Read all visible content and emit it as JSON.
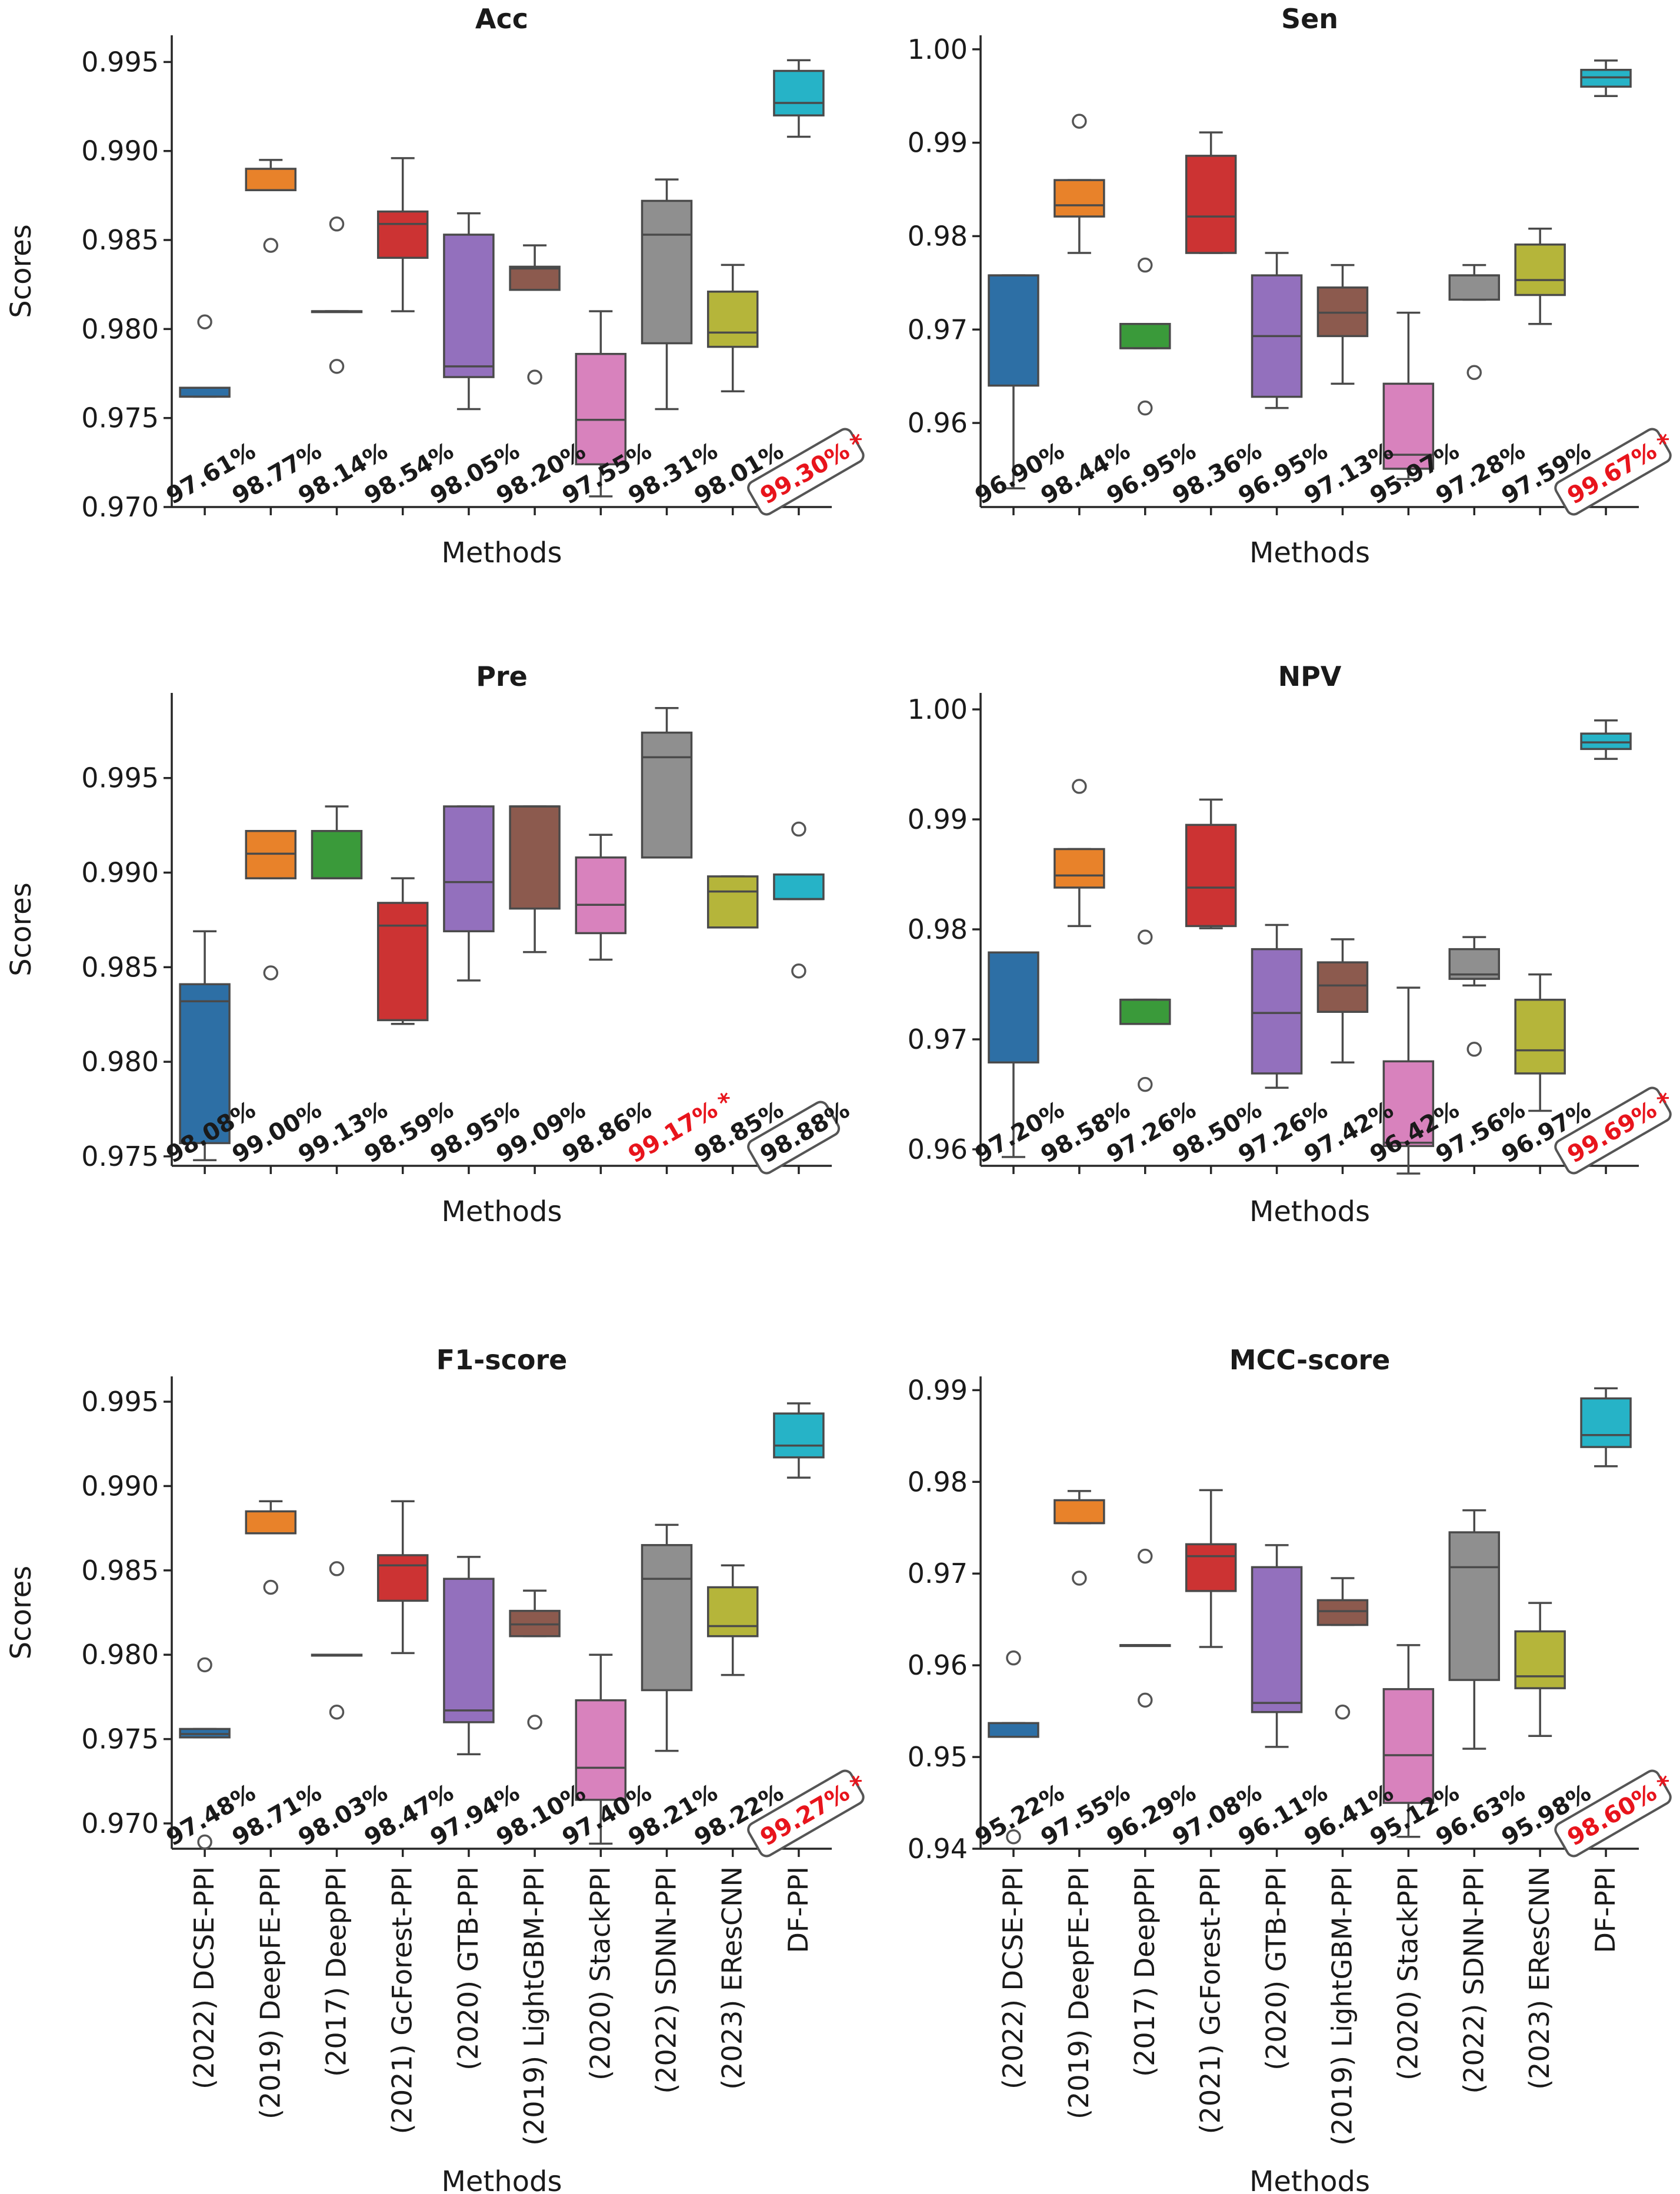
{
  "methods": [
    "(2022) DCSE-PPI",
    "(2019) DeepFE-PPI",
    "(2017) DeepPPI",
    "(2021) GcForest-PPI",
    "(2020) GTB-PPI",
    "(2019) LightGBM-PPI",
    "(2020) StackPPI",
    "(2022) SDNN-PPI",
    "(2023) EResCNN",
    "DF-PPI"
  ],
  "colors": [
    "#2d6fa5",
    "#e8822a",
    "#3a9a3a",
    "#cc3333",
    "#9370bd",
    "#8c5a4e",
    "#d882bd",
    "#8f8f8f",
    "#b5b53a",
    "#26b3c7"
  ],
  "axis_labels": {
    "x": "Methods",
    "y": "Scores"
  },
  "chart_data": [
    {
      "type": "box",
      "title": "Acc",
      "xlabel": "Methods",
      "ylabel": "Scores",
      "ylim": [
        0.97,
        0.9965
      ],
      "yticks": [
        0.97,
        0.975,
        0.98,
        0.985,
        0.99,
        0.995
      ],
      "ytick_labels": [
        "0.970",
        "0.975",
        "0.980",
        "0.985",
        "0.990",
        "0.995"
      ],
      "boxes": [
        {
          "whislo": 0.9762,
          "q1": 0.9762,
          "med": 0.9762,
          "q3": 0.9767,
          "whishi": 0.9767,
          "fliers": [
            0.9804
          ]
        },
        {
          "whislo": 0.9878,
          "q1": 0.9878,
          "med": 0.9878,
          "q3": 0.989,
          "whishi": 0.9895,
          "fliers": [
            0.9847
          ]
        },
        {
          "whislo": 0.981,
          "q1": 0.981,
          "med": 0.981,
          "q3": 0.981,
          "whishi": 0.981,
          "fliers": [
            0.9859,
            0.9779
          ]
        },
        {
          "whislo": 0.981,
          "q1": 0.984,
          "med": 0.9859,
          "q3": 0.9866,
          "whishi": 0.9896,
          "fliers": []
        },
        {
          "whislo": 0.9755,
          "q1": 0.9773,
          "med": 0.9779,
          "q3": 0.9853,
          "whishi": 0.9865,
          "fliers": []
        },
        {
          "whislo": 0.9822,
          "q1": 0.9822,
          "med": 0.9834,
          "q3": 0.9835,
          "whishi": 0.9847,
          "fliers": [
            0.9773
          ]
        },
        {
          "whislo": 0.9706,
          "q1": 0.9724,
          "med": 0.9749,
          "q3": 0.9786,
          "whishi": 0.981,
          "fliers": []
        },
        {
          "whislo": 0.9755,
          "q1": 0.9792,
          "med": 0.9853,
          "q3": 0.9872,
          "whishi": 0.9884,
          "fliers": []
        },
        {
          "whislo": 0.9765,
          "q1": 0.979,
          "med": 0.9798,
          "q3": 0.9821,
          "whishi": 0.9836,
          "fliers": []
        },
        {
          "whislo": 0.9908,
          "q1": 0.992,
          "med": 0.9927,
          "q3": 0.9945,
          "whishi": 0.9951,
          "fliers": []
        }
      ],
      "annotations": [
        "97.61%",
        "98.77%",
        "98.14%",
        "98.54%",
        "98.05%",
        "98.20%",
        "97.55%",
        "98.31%",
        "98.01%",
        "99.30%"
      ],
      "best_index": 9,
      "boxed_index": 9,
      "best_marker": "*"
    },
    {
      "type": "box",
      "title": "Sen",
      "xlabel": "Methods",
      "ylabel": "Scores",
      "ylim": [
        0.951,
        1.0015
      ],
      "yticks": [
        0.96,
        0.97,
        0.98,
        0.99,
        1.0
      ],
      "ytick_labels": [
        "0.96",
        "0.97",
        "0.98",
        "0.99",
        "1.00"
      ],
      "boxes": [
        {
          "whislo": 0.953,
          "q1": 0.964,
          "med": 0.9758,
          "q3": 0.9758,
          "whishi": 0.9758,
          "fliers": []
        },
        {
          "whislo": 0.9782,
          "q1": 0.9821,
          "med": 0.9833,
          "q3": 0.986,
          "whishi": 0.986,
          "fliers": [
            0.9923
          ]
        },
        {
          "whislo": 0.968,
          "q1": 0.968,
          "med": 0.968,
          "q3": 0.9706,
          "whishi": 0.9706,
          "fliers": [
            0.9769,
            0.9616
          ]
        },
        {
          "whislo": 0.9782,
          "q1": 0.9782,
          "med": 0.9821,
          "q3": 0.9886,
          "whishi": 0.9911,
          "fliers": []
        },
        {
          "whislo": 0.9616,
          "q1": 0.9628,
          "med": 0.9693,
          "q3": 0.9758,
          "whishi": 0.9782,
          "fliers": []
        },
        {
          "whislo": 0.9642,
          "q1": 0.9693,
          "med": 0.9718,
          "q3": 0.9745,
          "whishi": 0.9769,
          "fliers": []
        },
        {
          "whislo": 0.954,
          "q1": 0.9551,
          "med": 0.9566,
          "q3": 0.9642,
          "whishi": 0.9718,
          "fliers": []
        },
        {
          "whislo": 0.9732,
          "q1": 0.9732,
          "med": 0.9758,
          "q3": 0.9758,
          "whishi": 0.9769,
          "fliers": [
            0.9654
          ]
        },
        {
          "whislo": 0.9706,
          "q1": 0.9737,
          "med": 0.9753,
          "q3": 0.9791,
          "whishi": 0.9808,
          "fliers": []
        },
        {
          "whislo": 0.995,
          "q1": 0.996,
          "med": 0.997,
          "q3": 0.9978,
          "whishi": 0.9988,
          "fliers": []
        }
      ],
      "annotations": [
        "96.90%",
        "98.44%",
        "96.95%",
        "98.36%",
        "96.95%",
        "97.13%",
        "95.97%",
        "97.28%",
        "97.59%",
        "99.67%"
      ],
      "best_index": 9,
      "boxed_index": 9,
      "best_marker": "*"
    },
    {
      "type": "box",
      "title": "Pre",
      "xlabel": "Methods",
      "ylabel": "Scores",
      "ylim": [
        0.9745,
        0.9995
      ],
      "yticks": [
        0.975,
        0.98,
        0.985,
        0.99,
        0.995
      ],
      "ytick_labels": [
        "0.975",
        "0.980",
        "0.985",
        "0.990",
        "0.995"
      ],
      "boxes": [
        {
          "whislo": 0.9748,
          "q1": 0.9757,
          "med": 0.9832,
          "q3": 0.9841,
          "whishi": 0.9869,
          "fliers": []
        },
        {
          "whislo": 0.9897,
          "q1": 0.9897,
          "med": 0.991,
          "q3": 0.9922,
          "whishi": 0.9922,
          "fliers": [
            0.9847
          ]
        },
        {
          "whislo": 0.9897,
          "q1": 0.9897,
          "med": 0.9897,
          "q3": 0.9922,
          "whishi": 0.9935,
          "fliers": []
        },
        {
          "whislo": 0.982,
          "q1": 0.9822,
          "med": 0.9872,
          "q3": 0.9884,
          "whishi": 0.9897,
          "fliers": []
        },
        {
          "whislo": 0.9843,
          "q1": 0.9869,
          "med": 0.9895,
          "q3": 0.9935,
          "whishi": 0.9935,
          "fliers": []
        },
        {
          "whislo": 0.9858,
          "q1": 0.9881,
          "med": 0.9935,
          "q3": 0.9935,
          "whishi": 0.9935,
          "fliers": []
        },
        {
          "whislo": 0.9854,
          "q1": 0.9868,
          "med": 0.9883,
          "q3": 0.9908,
          "whishi": 0.992,
          "fliers": []
        },
        {
          "whislo": 0.9908,
          "q1": 0.9908,
          "med": 0.9961,
          "q3": 0.9974,
          "whishi": 0.9987,
          "fliers": []
        },
        {
          "whislo": 0.9871,
          "q1": 0.9871,
          "med": 0.989,
          "q3": 0.9898,
          "whishi": 0.9898,
          "fliers": []
        },
        {
          "whislo": 0.9886,
          "q1": 0.9886,
          "med": 0.9886,
          "q3": 0.9899,
          "whishi": 0.9899,
          "fliers": [
            0.9923,
            0.9848
          ]
        }
      ],
      "annotations": [
        "98.08%",
        "99.00%",
        "99.13%",
        "98.59%",
        "98.95%",
        "99.09%",
        "98.86%",
        "99.17%",
        "98.85%",
        "98.88%"
      ],
      "best_index": 7,
      "boxed_index": 9,
      "best_marker": "*"
    },
    {
      "type": "box",
      "title": "NPV",
      "xlabel": "Methods",
      "ylabel": "Scores",
      "ylim": [
        0.9585,
        1.0015
      ],
      "yticks": [
        0.96,
        0.97,
        0.98,
        0.99,
        1.0
      ],
      "ytick_labels": [
        "0.96",
        "0.97",
        "0.98",
        "0.99",
        "1.00"
      ],
      "boxes": [
        {
          "whislo": 0.9593,
          "q1": 0.9679,
          "med": 0.9779,
          "q3": 0.9779,
          "whishi": 0.9779,
          "fliers": []
        },
        {
          "whislo": 0.9803,
          "q1": 0.9838,
          "med": 0.9849,
          "q3": 0.9873,
          "whishi": 0.9873,
          "fliers": [
            0.993
          ]
        },
        {
          "whislo": 0.9714,
          "q1": 0.9714,
          "med": 0.9736,
          "q3": 0.9736,
          "whishi": 0.9736,
          "fliers": [
            0.9793,
            0.9659
          ]
        },
        {
          "whislo": 0.9801,
          "q1": 0.9803,
          "med": 0.9838,
          "q3": 0.9895,
          "whishi": 0.9918,
          "fliers": []
        },
        {
          "whislo": 0.9656,
          "q1": 0.9669,
          "med": 0.9724,
          "q3": 0.9782,
          "whishi": 0.9804,
          "fliers": []
        },
        {
          "whislo": 0.9679,
          "q1": 0.9725,
          "med": 0.9749,
          "q3": 0.977,
          "whishi": 0.9791,
          "fliers": []
        },
        {
          "whislo": 0.9578,
          "q1": 0.9603,
          "med": 0.9606,
          "q3": 0.968,
          "whishi": 0.9747,
          "fliers": []
        },
        {
          "whislo": 0.9749,
          "q1": 0.9755,
          "med": 0.9759,
          "q3": 0.9782,
          "whishi": 0.9793,
          "fliers": [
            0.9691
          ]
        },
        {
          "whislo": 0.9635,
          "q1": 0.9669,
          "med": 0.969,
          "q3": 0.9736,
          "whishi": 0.9759,
          "fliers": []
        },
        {
          "whislo": 0.9955,
          "q1": 0.9964,
          "med": 0.997,
          "q3": 0.9978,
          "whishi": 0.999,
          "fliers": []
        }
      ],
      "annotations": [
        "97.20%",
        "98.58%",
        "97.26%",
        "98.50%",
        "97.26%",
        "97.42%",
        "96.42%",
        "97.56%",
        "96.97%",
        "99.69%"
      ],
      "best_index": 9,
      "boxed_index": 9,
      "best_marker": "*"
    },
    {
      "type": "box",
      "title": "F1-score",
      "xlabel": "Methods",
      "ylabel": "Scores",
      "ylim": [
        0.9685,
        0.9965
      ],
      "yticks": [
        0.97,
        0.975,
        0.98,
        0.985,
        0.99,
        0.995
      ],
      "ytick_labels": [
        "0.970",
        "0.975",
        "0.980",
        "0.985",
        "0.990",
        "0.995"
      ],
      "boxes": [
        {
          "whislo": 0.9751,
          "q1": 0.9751,
          "med": 0.9753,
          "q3": 0.9756,
          "whishi": 0.9756,
          "fliers": [
            0.9794,
            0.9689
          ]
        },
        {
          "whislo": 0.9872,
          "q1": 0.9872,
          "med": 0.9872,
          "q3": 0.9885,
          "whishi": 0.9891,
          "fliers": [
            0.984
          ]
        },
        {
          "whislo": 0.98,
          "q1": 0.98,
          "med": 0.98,
          "q3": 0.98,
          "whishi": 0.98,
          "fliers": [
            0.9851,
            0.9766
          ]
        },
        {
          "whislo": 0.9801,
          "q1": 0.9832,
          "med": 0.9853,
          "q3": 0.9859,
          "whishi": 0.9891,
          "fliers": []
        },
        {
          "whislo": 0.9741,
          "q1": 0.976,
          "med": 0.9767,
          "q3": 0.9845,
          "whishi": 0.9858,
          "fliers": []
        },
        {
          "whislo": 0.9811,
          "q1": 0.9811,
          "med": 0.9818,
          "q3": 0.9826,
          "whishi": 0.9838,
          "fliers": [
            0.976
          ]
        },
        {
          "whislo": 0.9688,
          "q1": 0.9714,
          "med": 0.9733,
          "q3": 0.9773,
          "whishi": 0.98,
          "fliers": []
        },
        {
          "whislo": 0.9743,
          "q1": 0.9779,
          "med": 0.9845,
          "q3": 0.9865,
          "whishi": 0.9877,
          "fliers": []
        },
        {
          "whislo": 0.9788,
          "q1": 0.9811,
          "med": 0.9817,
          "q3": 0.984,
          "whishi": 0.9853,
          "fliers": []
        },
        {
          "whislo": 0.9905,
          "q1": 0.9917,
          "med": 0.9924,
          "q3": 0.9943,
          "whishi": 0.9949,
          "fliers": []
        }
      ],
      "annotations": [
        "97.48%",
        "98.71%",
        "98.03%",
        "98.47%",
        "97.94%",
        "98.10%",
        "97.40%",
        "98.21%",
        "98.22%",
        "99.27%"
      ],
      "best_index": 9,
      "boxed_index": 9,
      "best_marker": "*"
    },
    {
      "type": "box",
      "title": "MCC-score",
      "xlabel": "Methods",
      "ylabel": "Scores",
      "ylim": [
        0.94,
        0.9915
      ],
      "yticks": [
        0.94,
        0.95,
        0.96,
        0.97,
        0.98,
        0.99
      ],
      "ytick_labels": [
        "0.94",
        "0.95",
        "0.96",
        "0.97",
        "0.98",
        "0.99"
      ],
      "boxes": [
        {
          "whislo": 0.9522,
          "q1": 0.9522,
          "med": 0.9522,
          "q3": 0.9537,
          "whishi": 0.9537,
          "fliers": [
            0.9608,
            0.9413
          ]
        },
        {
          "whislo": 0.9755,
          "q1": 0.9755,
          "med": 0.9755,
          "q3": 0.978,
          "whishi": 0.979,
          "fliers": [
            0.9695
          ]
        },
        {
          "whislo": 0.9622,
          "q1": 0.9622,
          "med": 0.9622,
          "q3": 0.9622,
          "whishi": 0.9622,
          "fliers": [
            0.9719,
            0.9562
          ]
        },
        {
          "whislo": 0.962,
          "q1": 0.9681,
          "med": 0.9719,
          "q3": 0.9732,
          "whishi": 0.9791,
          "fliers": []
        },
        {
          "whislo": 0.9511,
          "q1": 0.9549,
          "med": 0.9559,
          "q3": 0.9707,
          "whishi": 0.9731,
          "fliers": []
        },
        {
          "whislo": 0.9644,
          "q1": 0.9644,
          "med": 0.9659,
          "q3": 0.9671,
          "whishi": 0.9695,
          "fliers": [
            0.9549
          ]
        },
        {
          "whislo": 0.9413,
          "q1": 0.945,
          "med": 0.9502,
          "q3": 0.9574,
          "whishi": 0.9622,
          "fliers": []
        },
        {
          "whislo": 0.9509,
          "q1": 0.9584,
          "med": 0.9707,
          "q3": 0.9745,
          "whishi": 0.9769,
          "fliers": []
        },
        {
          "whislo": 0.9523,
          "q1": 0.9575,
          "med": 0.9588,
          "q3": 0.9637,
          "whishi": 0.9668,
          "fliers": []
        },
        {
          "whislo": 0.9817,
          "q1": 0.9838,
          "med": 0.9851,
          "q3": 0.9891,
          "whishi": 0.9902,
          "fliers": []
        }
      ],
      "annotations": [
        "95.22%",
        "97.55%",
        "96.29%",
        "97.08%",
        "96.11%",
        "96.41%",
        "95.12%",
        "96.63%",
        "95.98%",
        "98.60%"
      ],
      "best_index": 9,
      "boxed_index": 9,
      "best_marker": "*"
    }
  ]
}
